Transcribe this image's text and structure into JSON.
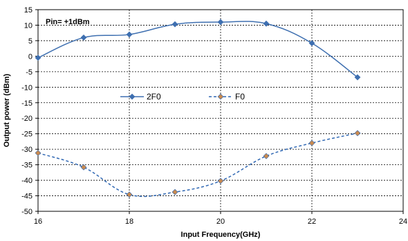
{
  "chart_data": {
    "type": "line",
    "annotation": "Pin= +1dBm",
    "xlabel": "Input Frequency(GHz)",
    "ylabel": "Output power (dBm)",
    "xlim": [
      16,
      24
    ],
    "ylim": [
      -50,
      15
    ],
    "xticks": [
      16,
      18,
      20,
      22,
      24
    ],
    "yticks": [
      15,
      10,
      5,
      0,
      -5,
      -10,
      -15,
      -20,
      -25,
      -30,
      -35,
      -40,
      -45,
      -50
    ],
    "grid": true,
    "legend_placement": "center, inside plot",
    "series": [
      {
        "name": "2F0",
        "x": [
          16,
          17,
          18,
          19,
          20,
          21,
          22,
          23
        ],
        "y": [
          -0.5,
          6,
          7,
          10.3,
          11,
          10.5,
          4.2,
          -6.8
        ],
        "color": "#3e6fb0",
        "line_style": "solid",
        "marker": "diamond"
      },
      {
        "name": "F0",
        "x": [
          16,
          17,
          18,
          19,
          20,
          21,
          22,
          23
        ],
        "y": [
          -31.2,
          -35.8,
          -44.6,
          -43.8,
          -40.2,
          -32.2,
          -28,
          -24.8
        ],
        "color": "#2f67b3",
        "marker_color": "#c98a4f",
        "line_style": "dashed",
        "marker": "diamond"
      }
    ]
  }
}
